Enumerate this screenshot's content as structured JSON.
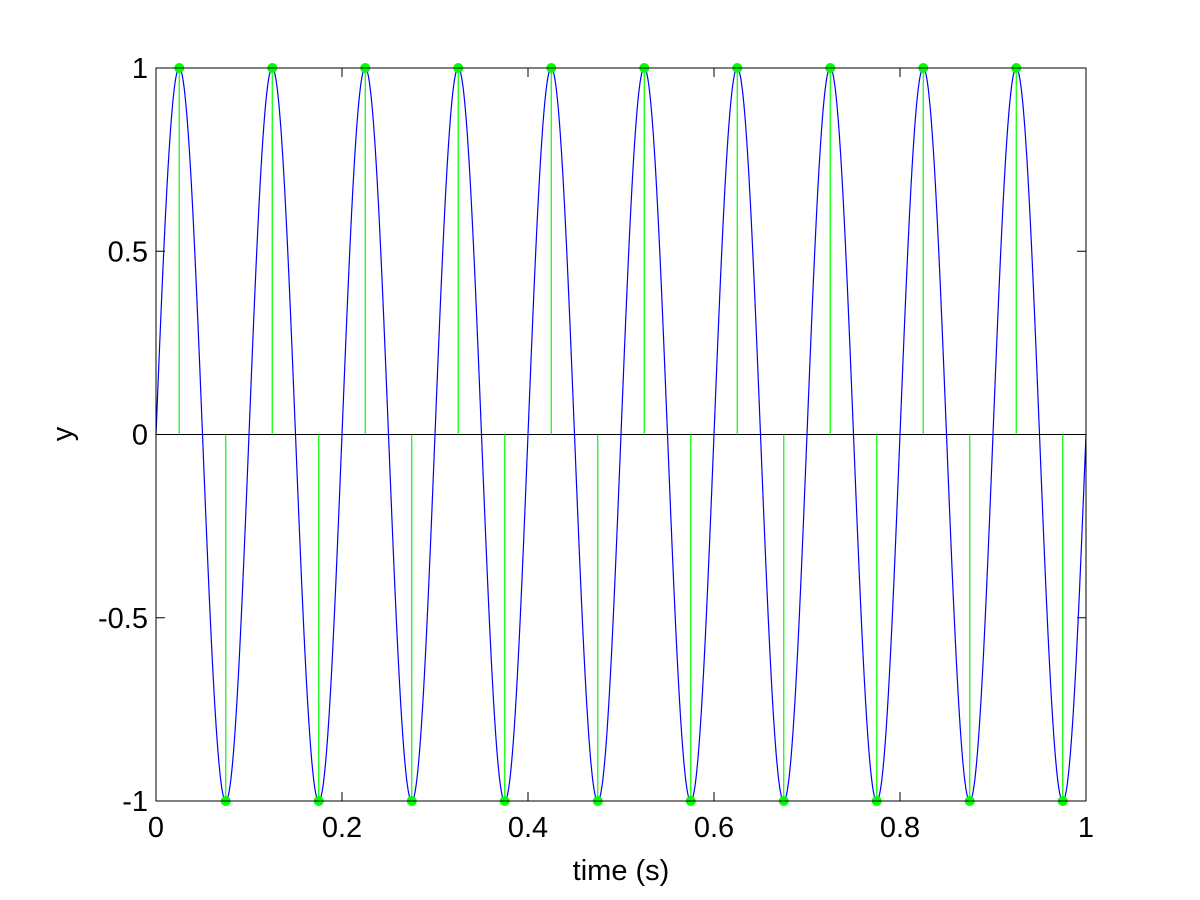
{
  "chart_data": {
    "type": "line",
    "title": "",
    "xlabel": "time (s)",
    "ylabel": "y",
    "xlim": [
      0,
      1
    ],
    "ylim": [
      -1,
      1
    ],
    "xticks": [
      0,
      0.2,
      0.4,
      0.6,
      0.8,
      1
    ],
    "xtick_labels": [
      "0",
      "0.2",
      "0.4",
      "0.6",
      "0.8",
      "1"
    ],
    "yticks": [
      -1,
      -0.5,
      0,
      0.5,
      1
    ],
    "ytick_labels": [
      "-1",
      "-0.5",
      "0",
      "0.5",
      "1"
    ],
    "grid": false,
    "zero_line": true,
    "series": [
      {
        "kind": "continuous-sine",
        "amplitude": 1,
        "frequency_hz": 10,
        "x_range": [
          0,
          1
        ],
        "color": "#0000ff"
      },
      {
        "kind": "stem",
        "color": "#00ff00",
        "x": [
          0.025,
          0.075,
          0.125,
          0.175,
          0.225,
          0.275,
          0.325,
          0.375,
          0.425,
          0.475,
          0.525,
          0.575,
          0.625,
          0.675,
          0.725,
          0.775,
          0.825,
          0.875,
          0.925,
          0.975
        ],
        "y": [
          1,
          -1,
          1,
          -1,
          1,
          -1,
          1,
          -1,
          1,
          -1,
          1,
          -1,
          1,
          -1,
          1,
          -1,
          1,
          -1,
          1,
          -1
        ]
      }
    ]
  }
}
